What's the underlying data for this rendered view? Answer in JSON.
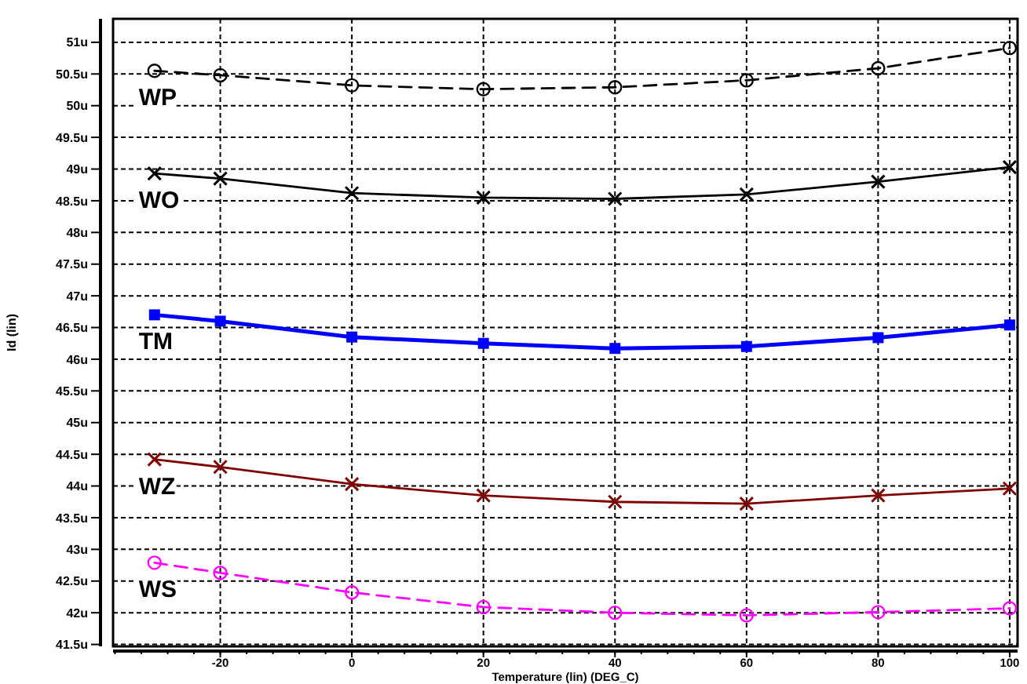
{
  "chart_data": {
    "type": "line",
    "xlabel": "Temperature (lin) (DEG_C)",
    "ylabel": "Id (lin)",
    "x": [
      -30,
      -20,
      0,
      20,
      40,
      60,
      80,
      100
    ],
    "xlim": [
      -36.3,
      101.2
    ],
    "xticks": [
      -20,
      0,
      20,
      40,
      60,
      80,
      100
    ],
    "ylim": [
      41.47,
      51.37
    ],
    "yticks": [
      {
        "value": 41.5,
        "label": "41.5u"
      },
      {
        "value": 42,
        "label": "42u"
      },
      {
        "value": 42.5,
        "label": "42.5u"
      },
      {
        "value": 43,
        "label": "43u"
      },
      {
        "value": 43.5,
        "label": "43.5u"
      },
      {
        "value": 44,
        "label": "44u"
      },
      {
        "value": 44.5,
        "label": "44.5u"
      },
      {
        "value": 45,
        "label": "45u"
      },
      {
        "value": 45.5,
        "label": "45.5u"
      },
      {
        "value": 46,
        "label": "46u"
      },
      {
        "value": 46.5,
        "label": "46.5u"
      },
      {
        "value": 47,
        "label": "47u"
      },
      {
        "value": 47.5,
        "label": "47.5u"
      },
      {
        "value": 48,
        "label": "48u"
      },
      {
        "value": 48.5,
        "label": "48.5u"
      },
      {
        "value": 49,
        "label": "49u"
      },
      {
        "value": 49.5,
        "label": "49.5u"
      },
      {
        "value": 50,
        "label": "50u"
      },
      {
        "value": 50.5,
        "label": "50.5u"
      },
      {
        "value": 51,
        "label": "51u"
      }
    ],
    "grid": true,
    "series": [
      {
        "name": "WP",
        "color": "#000000",
        "line_style": "dashed",
        "marker": "circle",
        "values": [
          50.55,
          50.48,
          50.32,
          50.26,
          50.29,
          50.4,
          50.59,
          50.91
        ]
      },
      {
        "name": "WO",
        "color": "#000000",
        "line_style": "solid",
        "marker": "cross",
        "values": [
          48.93,
          48.85,
          48.62,
          48.55,
          48.53,
          48.6,
          48.8,
          49.03
        ]
      },
      {
        "name": "TM",
        "color": "#0000ff",
        "line_style": "solid",
        "marker": "square",
        "values": [
          46.7,
          46.6,
          46.35,
          46.25,
          46.17,
          46.2,
          46.34,
          46.54
        ]
      },
      {
        "name": "WZ",
        "color": "#800000",
        "line_style": "solid",
        "marker": "cross",
        "values": [
          44.42,
          44.3,
          44.03,
          43.85,
          43.75,
          43.72,
          43.85,
          43.96
        ]
      },
      {
        "name": "WS",
        "color": "#ff00ff",
        "line_style": "dashed",
        "marker": "circle",
        "values": [
          42.79,
          42.63,
          42.32,
          42.09,
          42.0,
          41.96,
          42.01,
          42.07
        ]
      }
    ]
  }
}
